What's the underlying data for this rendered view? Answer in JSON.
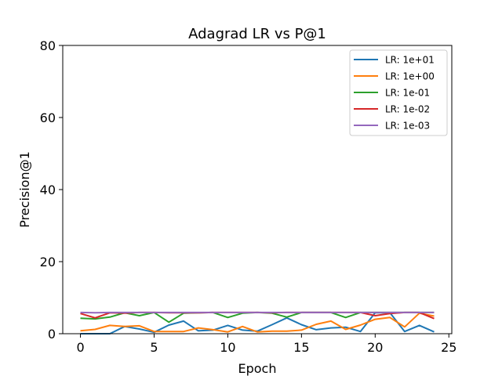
{
  "chart_data": {
    "type": "line",
    "title": "Adagrad LR vs P@1",
    "xlabel": "Epoch",
    "ylabel": "Precision@1",
    "xlim": [
      -1.2,
      25.2
    ],
    "ylim": [
      0,
      80
    ],
    "xticks": [
      0,
      5,
      10,
      15,
      20,
      25
    ],
    "yticks": [
      0,
      20,
      40,
      60,
      80
    ],
    "grid": false,
    "legend_position": "top-right",
    "x": [
      0,
      1,
      2,
      3,
      4,
      5,
      6,
      7,
      8,
      9,
      10,
      11,
      12,
      13,
      14,
      15,
      16,
      17,
      18,
      19,
      20,
      21,
      22,
      23,
      24
    ],
    "series": [
      {
        "name": "LR: 1e+01",
        "color": "#1f77b4",
        "values": [
          0.0,
          0.0,
          0.0,
          2.0,
          1.3,
          0.4,
          2.4,
          3.5,
          0.8,
          1.0,
          2.3,
          1.0,
          0.7,
          2.5,
          4.4,
          2.5,
          1.1,
          1.6,
          1.8,
          0.6,
          5.8,
          5.8,
          0.6,
          2.3,
          0.5
        ]
      },
      {
        "name": "LR: 1e+00",
        "color": "#ff7f0e",
        "values": [
          0.8,
          1.2,
          2.3,
          2.0,
          2.2,
          0.6,
          0.6,
          0.6,
          1.6,
          1.1,
          0.5,
          2.0,
          0.5,
          0.7,
          0.7,
          1.0,
          2.6,
          3.5,
          1.2,
          2.4,
          4.0,
          4.5,
          1.9,
          5.7,
          4.9
        ]
      },
      {
        "name": "LR: 1e-01",
        "color": "#2ca02c",
        "values": [
          4.3,
          4.1,
          4.6,
          5.8,
          5.0,
          5.9,
          3.2,
          5.7,
          5.8,
          5.9,
          4.5,
          5.7,
          5.9,
          5.7,
          4.6,
          5.9,
          5.9,
          5.9,
          4.5,
          5.9,
          5.9,
          5.9,
          5.9,
          5.9,
          5.9
        ]
      },
      {
        "name": "LR: 1e-02",
        "color": "#d62728",
        "values": [
          5.6,
          4.4,
          5.8,
          5.7,
          5.9,
          5.9,
          5.8,
          5.8,
          5.8,
          5.9,
          5.9,
          5.9,
          5.9,
          5.8,
          5.9,
          5.9,
          5.9,
          5.9,
          5.9,
          5.9,
          5.0,
          5.6,
          5.9,
          5.9,
          4.2
        ]
      },
      {
        "name": "LR: 1e-03",
        "color": "#9467bd",
        "values": [
          5.9,
          5.8,
          5.9,
          5.9,
          5.9,
          5.9,
          5.9,
          5.9,
          5.9,
          5.9,
          5.9,
          5.9,
          5.9,
          5.9,
          5.9,
          5.9,
          5.9,
          5.9,
          5.9,
          5.9,
          5.9,
          5.9,
          5.9,
          5.9,
          5.9
        ]
      }
    ]
  }
}
